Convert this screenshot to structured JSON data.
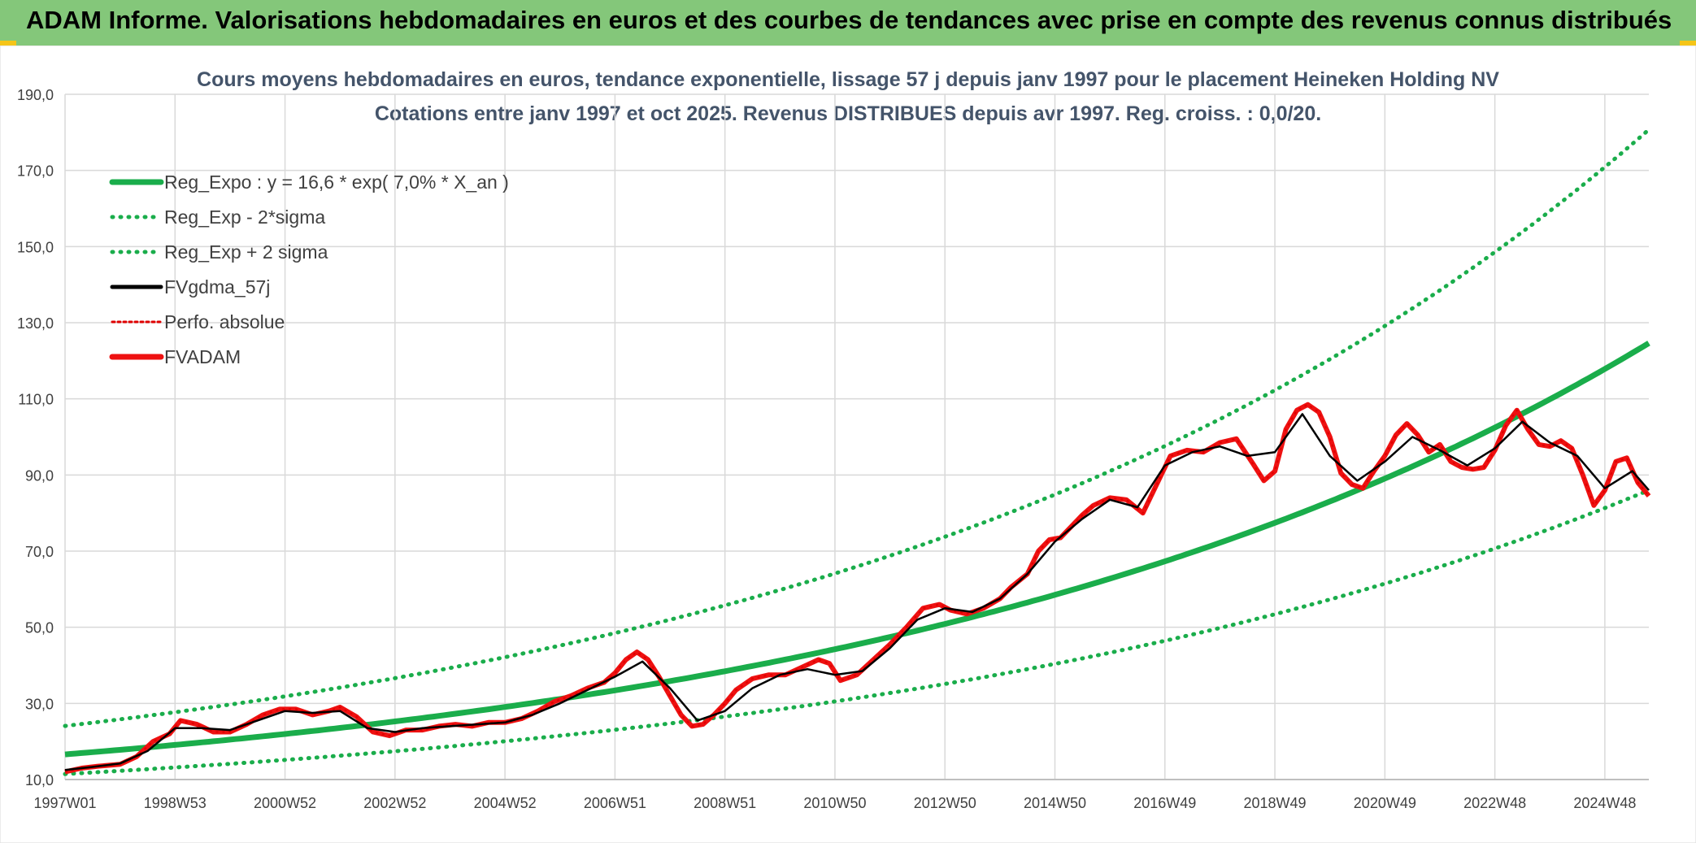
{
  "header": {
    "title": "ADAM Informe. Valorisations hebdomadaires en euros et des courbes de tendances avec prise en compte des revenus connus distribués"
  },
  "colors": {
    "header_bg": "#84c77a",
    "reg_expo": "#1aad4b",
    "sigma_bands": "#1aad4b",
    "fvgdma": "#000000",
    "perfo": "#e00000",
    "fvadam": "#ee1111",
    "grid": "#d9d9d9"
  },
  "chart_data": {
    "type": "line",
    "title": "Cours moyens hebdomadaires en euros, tendance exponentielle, lissage 57 j depuis janv 1997 pour le placement Heineken Holding NV",
    "subtitle": "Cotations entre janv 1997 et oct 2025. Revenus DISTRIBUES depuis avr 1997. Reg. croiss. : 0,0/20.",
    "xlabel": "",
    "ylabel": "",
    "ylim": [
      10,
      190
    ],
    "yticks": [
      10,
      30,
      50,
      70,
      90,
      110,
      130,
      150,
      170,
      190
    ],
    "ytick_labels": [
      "10,0",
      "30,0",
      "50,0",
      "70,0",
      "90,0",
      "110,0",
      "130,0",
      "150,0",
      "170,0",
      "190,0"
    ],
    "xlim": [
      1997.0,
      2025.8
    ],
    "xticks": [
      1997.0,
      1999.0,
      2001.0,
      2003.0,
      2005.0,
      2007.0,
      2009.0,
      2011.0,
      2013.0,
      2015.0,
      2017.0,
      2019.0,
      2021.0,
      2023.0,
      2025.0
    ],
    "xtick_labels": [
      "1997W01",
      "1998W53",
      "2000W52",
      "2002W52",
      "2004W52",
      "2006W51",
      "2008W51",
      "2010W50",
      "2012W50",
      "2014W50",
      "2016W49",
      "2018W49",
      "2020W49",
      "2022W48",
      "2024W48"
    ],
    "grid": true,
    "legend_position": "top-left",
    "legend": [
      {
        "label": "Reg_Expo : y = 16,6 * exp( 7,0% *  X_an )",
        "style": "solid-thick-green"
      },
      {
        "label": "Reg_Exp - 2*sigma",
        "style": "dotted-green"
      },
      {
        "label": "Reg_Exp + 2 sigma",
        "style": "dotted-green"
      },
      {
        "label": "FVgdma_57j",
        "style": "solid-black"
      },
      {
        "label": "Perfo. absolue",
        "style": "dotted-red"
      },
      {
        "label": "FVADAM",
        "style": "solid-thick-red"
      }
    ],
    "trend": {
      "a": 16.6,
      "rate": 0.07,
      "lower_factor": 0.69,
      "upper_factor": 1.45
    },
    "series": [
      {
        "name": "FVADAM",
        "x": [
          1997.0,
          1997.3,
          1997.6,
          1998.0,
          1998.3,
          1998.6,
          1998.9,
          1999.1,
          1999.4,
          1999.7,
          2000.0,
          2000.3,
          2000.6,
          2000.9,
          2001.2,
          2001.5,
          2001.8,
          2002.0,
          2002.3,
          2002.6,
          2002.9,
          2003.2,
          2003.5,
          2003.8,
          2004.1,
          2004.4,
          2004.7,
          2005.0,
          2005.3,
          2005.6,
          2005.9,
          2006.2,
          2006.5,
          2006.8,
          2007.0,
          2007.2,
          2007.4,
          2007.6,
          2007.8,
          2008.0,
          2008.2,
          2008.4,
          2008.6,
          2008.8,
          2009.0,
          2009.2,
          2009.5,
          2009.8,
          2010.1,
          2010.4,
          2010.7,
          2010.9,
          2011.1,
          2011.4,
          2011.7,
          2012.0,
          2012.3,
          2012.6,
          2012.9,
          2013.1,
          2013.4,
          2013.7,
          2014.0,
          2014.2,
          2014.5,
          2014.7,
          2014.9,
          2015.1,
          2015.3,
          2015.5,
          2015.7,
          2016.0,
          2016.3,
          2016.6,
          2016.9,
          2017.1,
          2017.4,
          2017.7,
          2018.0,
          2018.3,
          2018.6,
          2018.8,
          2019.0,
          2019.2,
          2019.4,
          2019.6,
          2019.8,
          2020.0,
          2020.2,
          2020.4,
          2020.6,
          2020.8,
          2021.0,
          2021.2,
          2021.4,
          2021.6,
          2021.8,
          2022.0,
          2022.2,
          2022.4,
          2022.6,
          2022.8,
          2023.0,
          2023.2,
          2023.4,
          2023.6,
          2023.8,
          2024.0,
          2024.2,
          2024.4,
          2024.6,
          2024.8,
          2025.0,
          2025.2,
          2025.4,
          2025.6,
          2025.8
        ],
        "values": [
          12.0,
          13.0,
          13.5,
          14.0,
          16.0,
          20.0,
          22.0,
          25.5,
          24.5,
          22.5,
          22.5,
          24.5,
          27.0,
          28.5,
          28.5,
          27.0,
          28.0,
          29.0,
          26.5,
          22.5,
          21.5,
          23.0,
          23.0,
          24.0,
          24.5,
          24.0,
          25.0,
          25.0,
          26.0,
          28.0,
          30.5,
          32.0,
          34.0,
          35.5,
          38.0,
          41.5,
          43.5,
          41.5,
          37.0,
          32.0,
          27.0,
          24.0,
          24.5,
          27.0,
          30.0,
          33.5,
          36.5,
          37.5,
          37.5,
          39.5,
          41.5,
          40.5,
          36.0,
          37.5,
          41.5,
          45.5,
          50.0,
          55.0,
          56.0,
          54.5,
          53.5,
          55.0,
          57.5,
          60.5,
          64.0,
          70.0,
          73.0,
          73.5,
          76.5,
          79.5,
          82.0,
          84.0,
          83.5,
          80.0,
          89.0,
          95.0,
          96.5,
          96.0,
          98.5,
          99.5,
          93.0,
          88.5,
          91.0,
          102.0,
          107.0,
          108.5,
          106.5,
          100.0,
          90.5,
          87.5,
          86.5,
          91.0,
          95.0,
          100.5,
          103.5,
          100.5,
          96.0,
          98.0,
          93.5,
          92.0,
          91.5,
          92.0,
          96.5,
          103.0,
          107.0,
          102.0,
          98.0,
          97.5,
          99.0,
          97.0,
          90.0,
          82.0,
          86.0,
          93.5,
          94.5,
          88.0,
          84.5
        ]
      },
      {
        "name": "FVgdma_57j",
        "x": [
          1997.0,
          1997.5,
          1998.0,
          1998.5,
          1999.0,
          1999.5,
          2000.0,
          2000.5,
          2001.0,
          2001.5,
          2002.0,
          2002.5,
          2003.0,
          2003.5,
          2004.0,
          2004.5,
          2005.0,
          2005.5,
          2006.0,
          2006.5,
          2007.0,
          2007.5,
          2008.0,
          2008.5,
          2009.0,
          2009.5,
          2010.0,
          2010.5,
          2011.0,
          2011.5,
          2012.0,
          2012.5,
          2013.0,
          2013.5,
          2014.0,
          2014.5,
          2015.0,
          2015.5,
          2016.0,
          2016.5,
          2017.0,
          2017.5,
          2018.0,
          2018.5,
          2019.0,
          2019.5,
          2020.0,
          2020.5,
          2021.0,
          2021.5,
          2022.0,
          2022.5,
          2023.0,
          2023.5,
          2024.0,
          2024.5,
          2025.0,
          2025.5,
          2025.8
        ],
        "values": [
          12.5,
          13.3,
          14.2,
          17.5,
          23.5,
          23.5,
          23.0,
          25.5,
          28.0,
          27.5,
          28.0,
          23.5,
          22.5,
          23.5,
          24.0,
          24.5,
          25.0,
          27.0,
          30.0,
          33.5,
          37.0,
          41.0,
          34.0,
          25.5,
          28.0,
          34.0,
          37.5,
          39.0,
          37.5,
          38.5,
          44.5,
          52.0,
          55.0,
          54.0,
          57.5,
          64.0,
          72.5,
          78.5,
          83.5,
          81.5,
          92.5,
          96.0,
          97.5,
          95.0,
          96.0,
          106.0,
          95.0,
          88.5,
          93.5,
          100.0,
          96.5,
          92.5,
          97.0,
          104.0,
          98.5,
          95.0,
          86.5,
          91.0,
          86.0
        ]
      }
    ]
  }
}
